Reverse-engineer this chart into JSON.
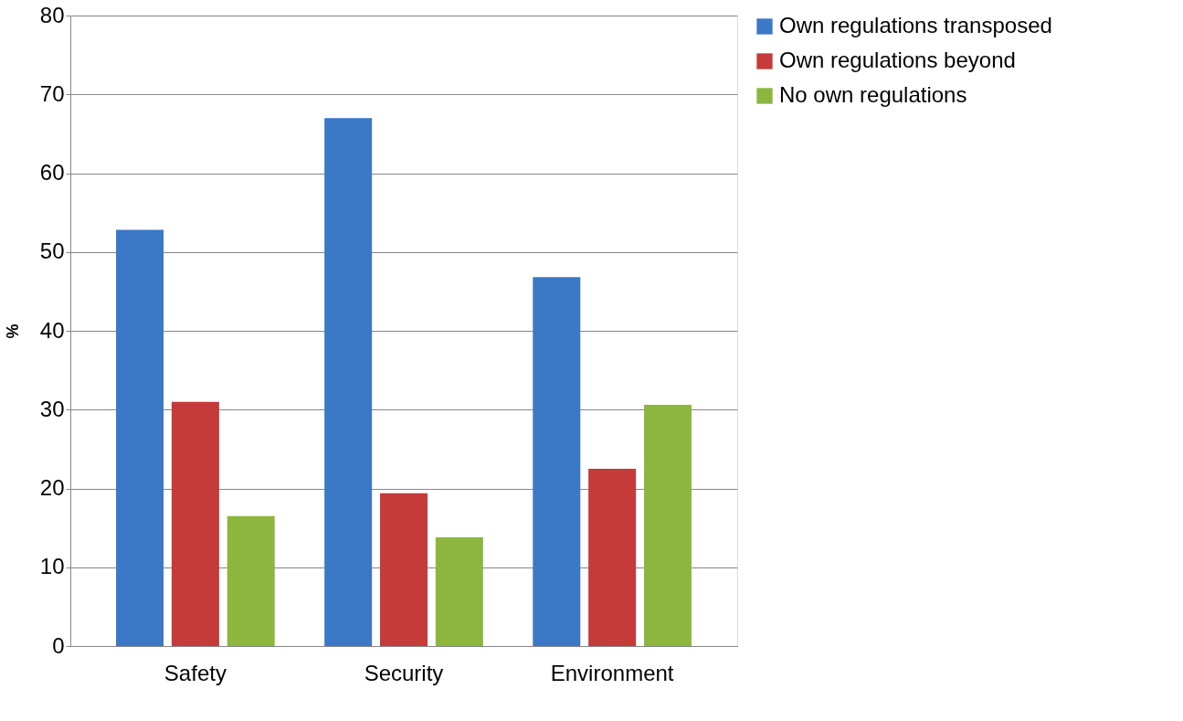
{
  "chart_data": {
    "type": "bar",
    "ylabel": "%",
    "categories": [
      "Safety",
      "Security",
      "Environment"
    ],
    "series": [
      {
        "name": "Own regulations transposed",
        "color": "#3b78c6",
        "values": [
          52.8,
          67.0,
          46.8
        ]
      },
      {
        "name": "Own regulations beyond",
        "color": "#c43b39",
        "values": [
          31.0,
          19.4,
          22.5
        ]
      },
      {
        "name": "No own regulations",
        "color": "#8db63e",
        "values": [
          16.5,
          13.8,
          30.6
        ]
      }
    ],
    "ylim": [
      0,
      80
    ],
    "yticks": [
      0,
      10,
      20,
      30,
      40,
      50,
      60,
      70,
      80
    ],
    "grid": "y",
    "legend": "right"
  }
}
